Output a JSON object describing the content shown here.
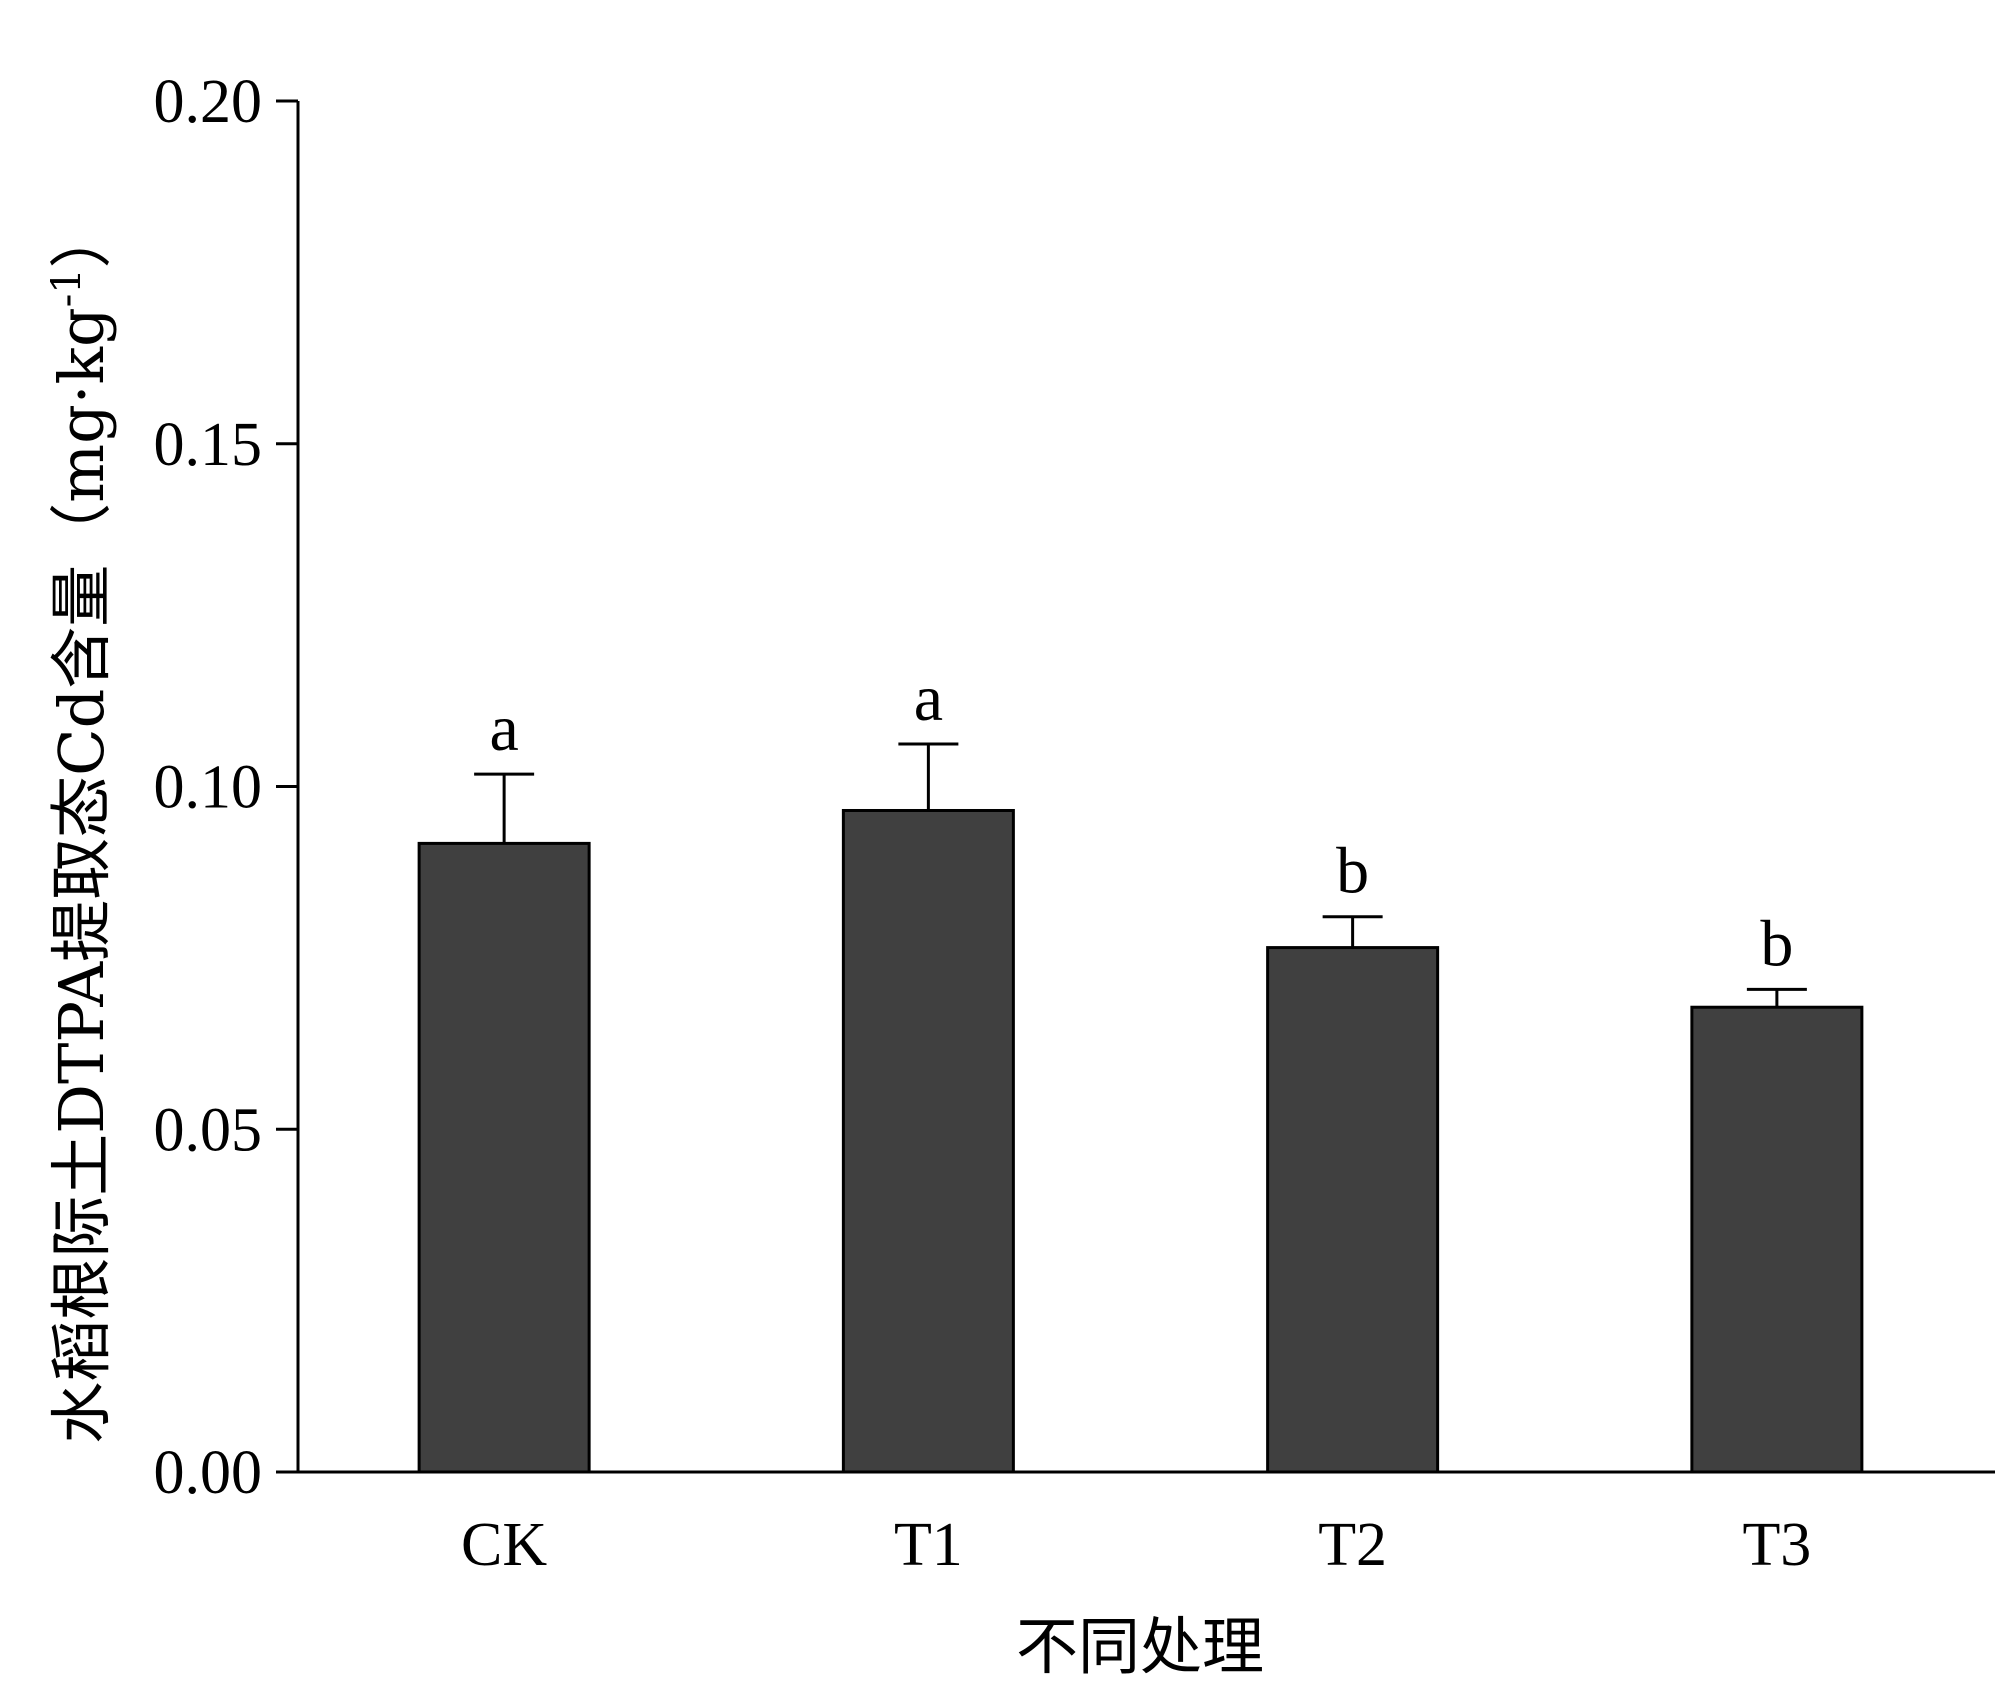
{
  "chart_data": {
    "type": "bar",
    "categories": [
      "CK",
      "T1",
      "T2",
      "T3"
    ],
    "values": [
      0.0917,
      0.0965,
      0.0765,
      0.0678
    ],
    "errors": [
      0.0101,
      0.0097,
      0.0045,
      0.0026
    ],
    "significance": [
      "a",
      "a",
      "b",
      "b"
    ],
    "xlabel": "不同处理",
    "ylabel": "水稻根际土DTPA提取态Cd含量（mg·kg",
    "ylabel_superscript": "-1",
    "ylabel_close": "）",
    "ylim": [
      0,
      0.2
    ],
    "yticks": [
      "0.00",
      "0.05",
      "0.10",
      "0.15",
      "0.20"
    ],
    "bar_color": "#404040",
    "grid": false,
    "legend": "none"
  }
}
